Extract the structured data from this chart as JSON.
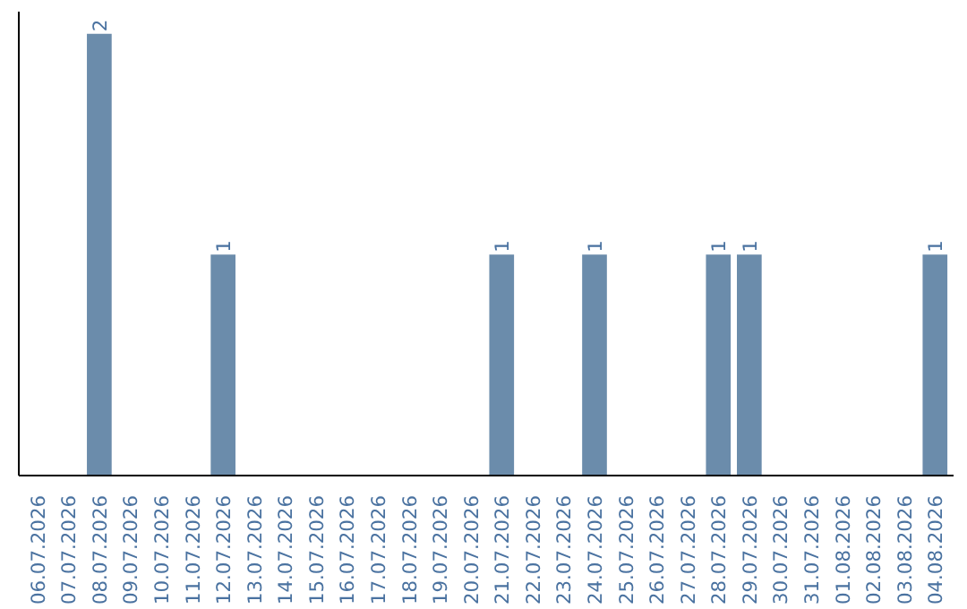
{
  "chart_data": {
    "type": "bar",
    "categories": [
      "06.07.2026",
      "07.07.2026",
      "08.07.2026",
      "09.07.2026",
      "10.07.2026",
      "11.07.2026",
      "12.07.2026",
      "13.07.2026",
      "14.07.2026",
      "15.07.2026",
      "16.07.2026",
      "17.07.2026",
      "18.07.2026",
      "19.07.2026",
      "20.07.2026",
      "21.07.2026",
      "22.07.2026",
      "23.07.2026",
      "24.07.2026",
      "25.07.2026",
      "26.07.2026",
      "27.07.2026",
      "28.07.2026",
      "29.07.2026",
      "30.07.2026",
      "31.07.2026",
      "01.08.2026",
      "02.08.2026",
      "03.08.2026",
      "04.08.2026"
    ],
    "values": [
      0,
      0,
      2,
      0,
      0,
      0,
      1,
      0,
      0,
      0,
      0,
      0,
      0,
      0,
      0,
      1,
      0,
      0,
      1,
      0,
      0,
      0,
      1,
      1,
      0,
      0,
      0,
      0,
      0,
      1
    ],
    "value_labels": [
      null,
      null,
      "2",
      null,
      null,
      null,
      "1",
      null,
      null,
      null,
      null,
      null,
      null,
      null,
      null,
      "1",
      null,
      null,
      "1",
      null,
      null,
      null,
      "1",
      "1",
      null,
      null,
      null,
      null,
      null,
      "1"
    ],
    "color": "#6b8cab",
    "grid": false,
    "tick_labels": "x"
  }
}
